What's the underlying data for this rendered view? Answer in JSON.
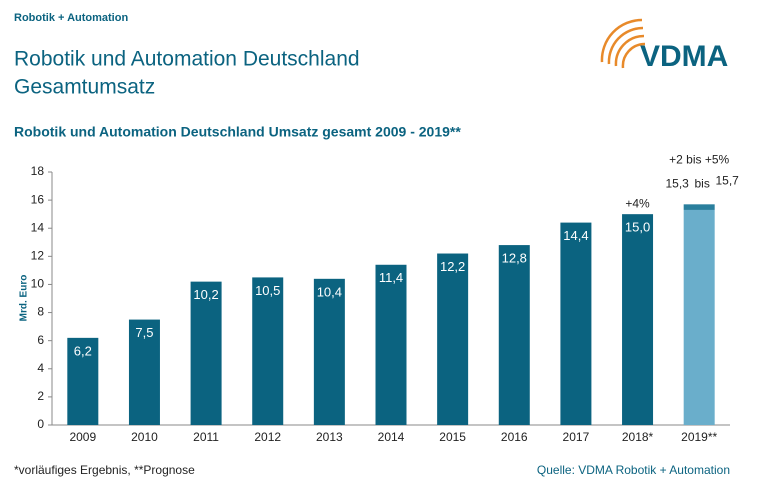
{
  "header": {
    "brand": "Robotik + Automation",
    "title_lines": [
      "Robotik und Automation Deutschland",
      "Gesamtumsatz"
    ],
    "logo": "VDMA"
  },
  "chart_data": {
    "type": "bar",
    "title": "Robotik und Automation Deutschland Umsatz gesamt 2009 - 2019**",
    "ylabel": "Mrd. Euro",
    "categories": [
      "2009",
      "2010",
      "2011",
      "2012",
      "2013",
      "2014",
      "2015",
      "2016",
      "2017",
      "2018*",
      "2019**"
    ],
    "values": [
      6.2,
      7.5,
      10.2,
      10.5,
      10.4,
      11.4,
      12.2,
      12.8,
      14.4,
      15.0,
      15.3
    ],
    "value_labels": [
      "6,2",
      "7,5",
      "10,2",
      "10,5",
      "10,4",
      "11,4",
      "12,2",
      "12,8",
      "14,4",
      "15,0",
      "15,3"
    ],
    "forecast_upper": 15.7,
    "forecast_upper_label": "15,7",
    "forecast_connector": "bis",
    "color": "#0b6380",
    "forecast_color": "#6aaecb",
    "forecast_range_color": "#2a7f9d",
    "annotations": [
      "+4%",
      "+2 bis +5%"
    ],
    "ylim": [
      0,
      18
    ],
    "yticks": [
      0,
      2,
      4,
      6,
      8,
      10,
      12,
      14,
      16,
      18
    ],
    "grid": false,
    "footnote": "*vorläufiges Ergebnis, **Prognose",
    "source": "Quelle: VDMA Robotik + Automation"
  }
}
